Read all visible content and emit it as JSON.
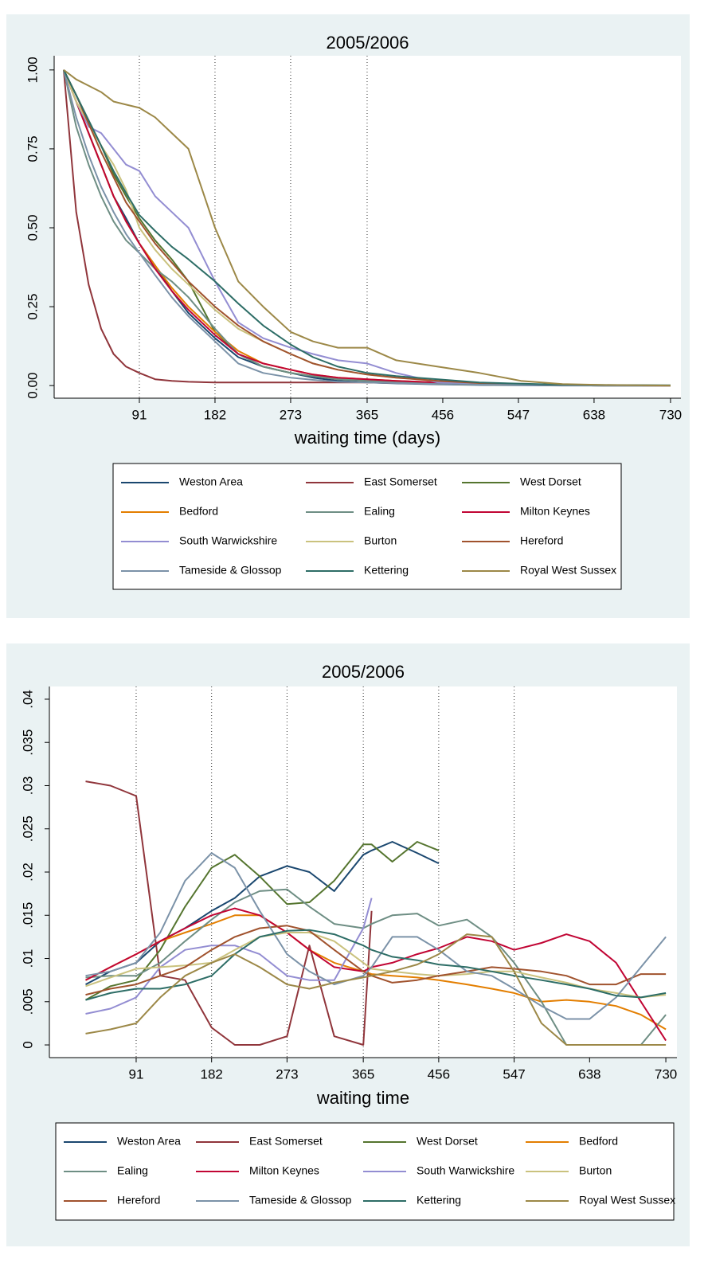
{
  "chart_data": [
    {
      "type": "line",
      "title": "2005/2006",
      "x_label": "waiting time (days)",
      "xlim": [
        -11.5,
        742.5
      ],
      "ylim": [
        -0.04,
        1.045
      ],
      "xticks": [
        91,
        182,
        273,
        365,
        456,
        547,
        638,
        730
      ],
      "yticks": [
        {
          "value": 0,
          "label": "0.00"
        },
        {
          "value": 0.25,
          "label": "0.25"
        },
        {
          "value": 0.5,
          "label": "0.50"
        },
        {
          "value": 0.75,
          "label": "0.75"
        },
        {
          "value": 1,
          "label": "1.00"
        }
      ],
      "reference_lines": [
        91,
        182,
        273,
        365
      ],
      "legend_columns": 3,
      "x": [
        0,
        15,
        30,
        45,
        60,
        75,
        91,
        110,
        130,
        150,
        182,
        210,
        240,
        273,
        300,
        330,
        365,
        400,
        450,
        500,
        550,
        600,
        650,
        730
      ],
      "series": [
        {
          "name": "Weston Area",
          "color": "#1a476f",
          "values": [
            1,
            0.9,
            0.8,
            0.7,
            0.6,
            0.53,
            0.45,
            0.38,
            0.3,
            0.23,
            0.15,
            0.09,
            0.06,
            0.04,
            0.025,
            0.015,
            0.01,
            0.007,
            0.004,
            0.002,
            0.001,
            0,
            0,
            0
          ]
        },
        {
          "name": "East Somerset",
          "color": "#90353b",
          "values": [
            1,
            0.55,
            0.32,
            0.18,
            0.1,
            0.06,
            0.04,
            0.02,
            0.015,
            0.012,
            0.01,
            0.01,
            0.01,
            0.01,
            0.01,
            0.01,
            0.01,
            0.008,
            0.005,
            0.003,
            0.002,
            0.001,
            0,
            0
          ]
        },
        {
          "name": "West Dorset",
          "color": "#55752f",
          "values": [
            1,
            0.92,
            0.84,
            0.76,
            0.67,
            0.6,
            0.53,
            0.46,
            0.4,
            0.33,
            0.17,
            0.1,
            0.06,
            0.04,
            0.03,
            0.02,
            0.015,
            0.01,
            0.005,
            0.003,
            0.002,
            0.001,
            0,
            0
          ]
        },
        {
          "name": "Bedford",
          "color": "#e37e00",
          "values": [
            1,
            0.9,
            0.8,
            0.7,
            0.6,
            0.52,
            0.45,
            0.38,
            0.31,
            0.25,
            0.17,
            0.11,
            0.07,
            0.05,
            0.035,
            0.025,
            0.02,
            0.015,
            0.01,
            0.005,
            0.003,
            0.002,
            0.001,
            0
          ]
        },
        {
          "name": "Ealing",
          "color": "#6e8e84",
          "values": [
            1,
            0.82,
            0.7,
            0.6,
            0.52,
            0.46,
            0.42,
            0.37,
            0.33,
            0.28,
            0.18,
            0.1,
            0.06,
            0.04,
            0.03,
            0.02,
            0.015,
            0.01,
            0.006,
            0.003,
            0.002,
            0.001,
            0,
            0
          ]
        },
        {
          "name": "Milton Keynes",
          "color": "#c10534",
          "values": [
            1,
            0.9,
            0.8,
            0.7,
            0.6,
            0.52,
            0.45,
            0.37,
            0.3,
            0.24,
            0.16,
            0.1,
            0.07,
            0.05,
            0.035,
            0.025,
            0.02,
            0.015,
            0.01,
            0.006,
            0.004,
            0.002,
            0.001,
            0
          ]
        },
        {
          "name": "South Warwickshire",
          "color": "#938dd2",
          "values": [
            1,
            0.9,
            0.82,
            0.8,
            0.75,
            0.7,
            0.68,
            0.6,
            0.55,
            0.5,
            0.33,
            0.2,
            0.15,
            0.12,
            0.1,
            0.08,
            0.07,
            0.04,
            0.01,
            0.005,
            0.003,
            0.001,
            0,
            0
          ]
        },
        {
          "name": "Burton",
          "color": "#cac27e",
          "values": [
            1,
            0.9,
            0.83,
            0.76,
            0.7,
            0.62,
            0.5,
            0.43,
            0.37,
            0.32,
            0.24,
            0.18,
            0.14,
            0.1,
            0.07,
            0.05,
            0.035,
            0.025,
            0.015,
            0.008,
            0.004,
            0.002,
            0.001,
            0
          ]
        },
        {
          "name": "Hereford",
          "color": "#a0522d",
          "values": [
            1,
            0.92,
            0.83,
            0.74,
            0.66,
            0.58,
            0.52,
            0.45,
            0.39,
            0.33,
            0.25,
            0.19,
            0.14,
            0.1,
            0.07,
            0.05,
            0.035,
            0.025,
            0.015,
            0.008,
            0.004,
            0.002,
            0.001,
            0
          ]
        },
        {
          "name": "Tameside & Glossop",
          "color": "#7b92a8",
          "values": [
            1,
            0.85,
            0.73,
            0.63,
            0.55,
            0.48,
            0.42,
            0.35,
            0.28,
            0.22,
            0.14,
            0.07,
            0.04,
            0.025,
            0.018,
            0.012,
            0.01,
            0.008,
            0.005,
            0.003,
            0.002,
            0.001,
            0,
            0
          ]
        },
        {
          "name": "Kettering",
          "color": "#2d6d66",
          "values": [
            1,
            0.92,
            0.84,
            0.76,
            0.68,
            0.61,
            0.54,
            0.49,
            0.44,
            0.4,
            0.33,
            0.26,
            0.19,
            0.13,
            0.09,
            0.06,
            0.04,
            0.03,
            0.02,
            0.01,
            0.006,
            0.003,
            0.002,
            0.001
          ]
        },
        {
          "name": "Royal West Sussex",
          "color": "#9c8847",
          "values": [
            1,
            0.97,
            0.95,
            0.93,
            0.9,
            0.89,
            0.88,
            0.85,
            0.8,
            0.75,
            0.5,
            0.33,
            0.25,
            0.17,
            0.14,
            0.12,
            0.12,
            0.08,
            0.06,
            0.04,
            0.015,
            0.005,
            0.002,
            0
          ]
        }
      ]
    },
    {
      "type": "line",
      "title": "2005/2006",
      "x_label": "waiting time",
      "xlim": [
        -13.7,
        743.4
      ],
      "ylim": [
        -0.00147,
        0.04147
      ],
      "xticks": [
        91,
        182,
        273,
        365,
        456,
        547,
        638,
        730
      ],
      "yticks": [
        0,
        {
          "value": 0.005,
          "label": ".005"
        },
        {
          "value": 0.01,
          "label": ".01"
        },
        {
          "value": 0.015,
          "label": ".015"
        },
        {
          "value": 0.02,
          "label": ".02"
        },
        {
          "value": 0.025,
          "label": ".025"
        },
        {
          "value": 0.03,
          "label": ".03"
        },
        {
          "value": 0.035,
          "label": ".035"
        },
        {
          "value": 0.04,
          "label": ".04"
        }
      ],
      "reference_lines": [
        91,
        182,
        273,
        365,
        456,
        547
      ],
      "legend_columns": 4,
      "x": [
        30,
        60,
        91,
        120,
        150,
        182,
        210,
        240,
        273,
        300,
        330,
        365,
        375,
        400,
        430,
        456,
        490,
        520,
        547,
        580,
        610,
        638,
        670,
        700,
        730
      ],
      "series": [
        {
          "name": "Weston Area",
          "color": "#1a476f",
          "values": [
            0.007,
            0.0085,
            0.0095,
            0.012,
            0.0135,
            0.0155,
            0.017,
            0.0195,
            0.0207,
            0.02,
            0.0178,
            0.022,
            0.0225,
            0.0235,
            0.0222,
            0.021,
            null,
            null,
            null,
            null,
            null,
            null,
            null,
            null,
            null
          ]
        },
        {
          "name": "East Somerset",
          "color": "#90353b",
          "values": [
            0.0305,
            0.03,
            0.0288,
            0.008,
            0.0075,
            0.002,
            0,
            0,
            0.001,
            0.0115,
            0.001,
            0,
            0.0155,
            null,
            null,
            null,
            null,
            null,
            null,
            null,
            null,
            null,
            null,
            null,
            null
          ]
        },
        {
          "name": "West Dorset",
          "color": "#55752f",
          "values": [
            0.0052,
            0.0068,
            0.0075,
            0.011,
            0.016,
            0.0205,
            0.022,
            0.0195,
            0.0163,
            0.0165,
            0.019,
            0.0232,
            0.0232,
            0.0212,
            0.0235,
            0.0225,
            null,
            null,
            null,
            null,
            null,
            null,
            null,
            null,
            null
          ]
        },
        {
          "name": "Bedford",
          "color": "#e37e00",
          "values": [
            0.0075,
            0.009,
            0.0105,
            0.012,
            0.013,
            0.014,
            0.015,
            0.015,
            0.013,
            0.011,
            0.0095,
            0.0085,
            0.0082,
            0.008,
            0.0078,
            0.0075,
            0.007,
            0.0065,
            0.006,
            0.005,
            0.0052,
            0.005,
            0.0045,
            0.0035,
            0.0018
          ]
        },
        {
          "name": "Ealing",
          "color": "#6e8e84",
          "values": [
            0.0078,
            0.008,
            0.008,
            0.0095,
            0.012,
            0.0145,
            0.0165,
            0.0178,
            0.018,
            0.016,
            0.014,
            0.0135,
            0.014,
            0.015,
            0.0152,
            0.0138,
            0.0145,
            0.0125,
            0.0095,
            0.005,
            0,
            0,
            0,
            0,
            0.0035
          ]
        },
        {
          "name": "Milton Keynes",
          "color": "#c10534",
          "values": [
            0.0075,
            0.009,
            0.0105,
            0.012,
            0.0135,
            0.015,
            0.0158,
            0.015,
            0.013,
            0.011,
            0.009,
            0.0085,
            0.009,
            0.0095,
            0.0105,
            0.0112,
            0.0125,
            0.012,
            0.011,
            0.0118,
            0.0128,
            0.012,
            0.0095,
            0.005,
            0.0005
          ]
        },
        {
          "name": "South Warwickshire",
          "color": "#938dd2",
          "values": [
            0.0036,
            0.0042,
            0.0055,
            0.009,
            0.011,
            0.0115,
            0.0115,
            0.0105,
            0.008,
            0.0075,
            0.0075,
            0.0135,
            0.017,
            null,
            null,
            null,
            null,
            null,
            null,
            null,
            null,
            null,
            null,
            null,
            null
          ]
        },
        {
          "name": "Burton",
          "color": "#cac27e",
          "values": [
            0.0068,
            0.0078,
            0.0088,
            0.009,
            0.0092,
            0.0095,
            0.011,
            0.0125,
            0.013,
            0.013,
            0.012,
            0.0095,
            0.0088,
            0.0085,
            0.0082,
            0.008,
            0.0082,
            0.0085,
            0.0085,
            0.0078,
            0.0072,
            0.0065,
            0.006,
            0.0055,
            0.0058
          ]
        },
        {
          "name": "Hereford",
          "color": "#a0522d",
          "values": [
            0.0058,
            0.0065,
            0.007,
            0.008,
            0.009,
            0.011,
            0.0125,
            0.0135,
            0.0138,
            0.0132,
            0.011,
            0.0085,
            0.008,
            0.0072,
            0.0075,
            0.008,
            0.0085,
            0.009,
            0.0088,
            0.0085,
            0.008,
            0.007,
            0.007,
            0.0082,
            0.0082
          ]
        },
        {
          "name": "Tameside & Glossop",
          "color": "#7b92a8",
          "values": [
            0.008,
            0.0085,
            0.0095,
            0.013,
            0.019,
            0.0222,
            0.0205,
            0.0155,
            0.0105,
            0.0085,
            0.007,
            0.008,
            0.009,
            0.0125,
            0.0125,
            0.011,
            0.0085,
            0.008,
            0.0065,
            0.0045,
            0.003,
            0.003,
            0.0055,
            0.009,
            0.0125
          ]
        },
        {
          "name": "Kettering",
          "color": "#2d6d66",
          "values": [
            0.0052,
            0.006,
            0.0065,
            0.0065,
            0.007,
            0.008,
            0.0105,
            0.0125,
            0.0132,
            0.0133,
            0.0128,
            0.0115,
            0.011,
            0.0102,
            0.0098,
            0.0093,
            0.009,
            0.0085,
            0.008,
            0.0075,
            0.007,
            0.0065,
            0.0057,
            0.0055,
            0.006
          ]
        },
        {
          "name": "Royal West Sussex",
          "color": "#9c8847",
          "values": [
            0.0013,
            0.0018,
            0.0025,
            0.0055,
            0.008,
            0.0095,
            0.0105,
            0.009,
            0.007,
            0.0065,
            0.0072,
            0.0078,
            0.008,
            0.0085,
            0.0093,
            0.0105,
            0.0128,
            0.0125,
            0.0085,
            0.0025,
            0,
            0,
            0,
            0,
            0
          ]
        }
      ]
    }
  ]
}
